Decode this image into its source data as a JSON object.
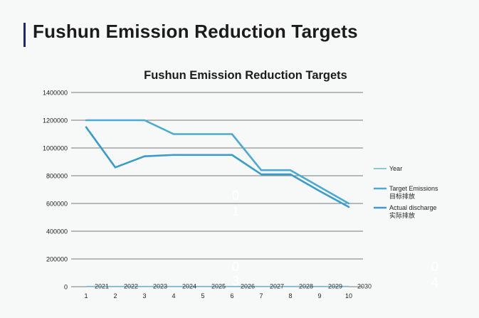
{
  "slide": {
    "title": "Fushun Emission Reduction Targets",
    "accent_color": "#1a2a6c"
  },
  "chart_data": {
    "type": "line",
    "title": "Fushun Emission Reduction Targets",
    "xlabel": "",
    "ylabel": "",
    "x": [
      1,
      2,
      3,
      4,
      5,
      6,
      7,
      8,
      9,
      10
    ],
    "ylim": [
      0,
      1400000
    ],
    "yticks": [
      0,
      200000,
      400000,
      600000,
      800000,
      1000000,
      1200000,
      1400000
    ],
    "grid": true,
    "legend_position": "right",
    "series": [
      {
        "name": "Year",
        "values": [
          2021,
          2022,
          2023,
          2024,
          2025,
          2026,
          2027,
          2028,
          2029,
          2030
        ],
        "color": "#6bb6d1",
        "point_labels": [
          "2021",
          "2022",
          "2023",
          "2024",
          "2025",
          "2026",
          "2027",
          "2028",
          "2029",
          "2030"
        ]
      },
      {
        "name": "Target Emissions",
        "name_cn": "目标排放",
        "values": [
          1200000,
          1200000,
          1200000,
          1100000,
          1100000,
          1100000,
          840000,
          840000,
          720000,
          600000
        ],
        "color": "#4aaad2"
      },
      {
        "name": "Actual discharge",
        "name_cn": "实际排放",
        "values": [
          1150000,
          860000,
          940000,
          950000,
          950000,
          950000,
          810000,
          810000,
          690000,
          575000
        ],
        "color": "#3b9ccc"
      }
    ]
  },
  "decorations": [
    "0",
    "1",
    "0",
    "3",
    "0",
    "4"
  ]
}
